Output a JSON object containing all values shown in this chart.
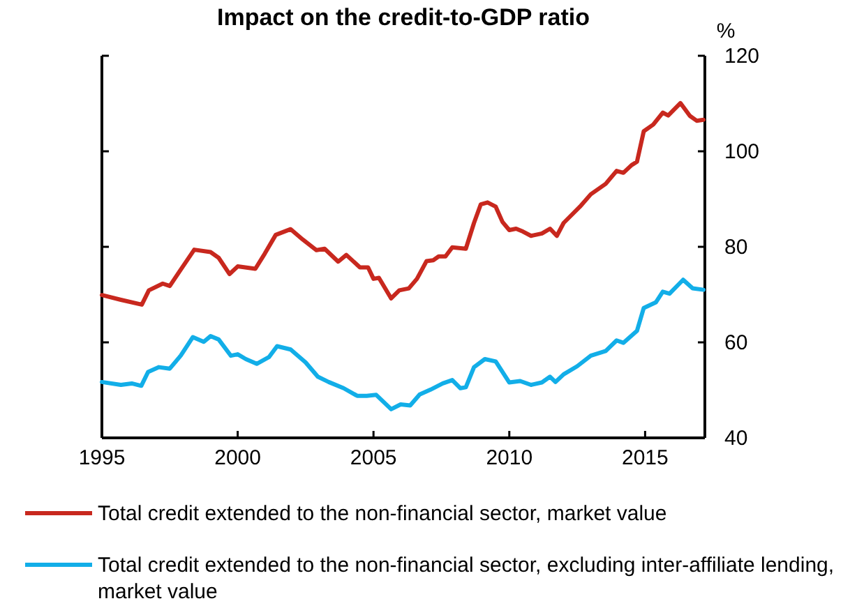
{
  "chart_data": {
    "type": "line",
    "title": "Impact on the credit-to-GDP ratio",
    "ylabel": "%",
    "xlim": [
      1995,
      2017.2
    ],
    "xticks": [
      1995,
      2000,
      2005,
      2010,
      2015
    ],
    "ylim": [
      40,
      120
    ],
    "yticks": [
      40,
      60,
      80,
      100,
      120
    ],
    "grid": false,
    "legend": "bottom",
    "marker": "none",
    "line_style": "solid",
    "series": [
      {
        "name": "Total credit extended to the non-financial sector, market value",
        "color": "#c8281e",
        "x": [
          1995.0,
          1995.7,
          1996.47,
          1996.73,
          1997.24,
          1997.5,
          1997.9,
          1998.4,
          1999.0,
          1999.3,
          1999.7,
          2000.0,
          2000.65,
          2001.0,
          2001.4,
          2001.95,
          2002.4,
          2002.9,
          2003.2,
          2003.7,
          2004.0,
          2004.5,
          2004.8,
          2005.0,
          2005.2,
          2005.65,
          2005.95,
          2006.3,
          2006.6,
          2006.95,
          2007.2,
          2007.4,
          2007.65,
          2007.9,
          2008.4,
          2008.7,
          2008.95,
          2009.2,
          2009.5,
          2009.75,
          2010.0,
          2010.25,
          2010.5,
          2010.8,
          2011.2,
          2011.5,
          2011.75,
          2012.0,
          2012.6,
          2013.0,
          2013.55,
          2013.95,
          2014.2,
          2014.5,
          2014.7,
          2014.95,
          2015.3,
          2015.65,
          2015.85,
          2016.3,
          2016.65,
          2016.9,
          2017.15
        ],
        "values": [
          69.9,
          68.9,
          67.9,
          70.9,
          72.3,
          71.8,
          75.2,
          79.4,
          78.9,
          77.7,
          74.3,
          75.9,
          75.4,
          78.6,
          82.5,
          83.7,
          81.5,
          79.3,
          79.6,
          76.9,
          78.3,
          75.7,
          75.7,
          73.3,
          73.5,
          69.2,
          70.9,
          71.3,
          73.3,
          77.0,
          77.2,
          78.0,
          78.0,
          79.9,
          79.6,
          85.0,
          88.9,
          89.3,
          88.4,
          85.2,
          83.5,
          83.8,
          83.2,
          82.3,
          82.8,
          83.8,
          82.3,
          85.0,
          88.4,
          91.0,
          93.2,
          95.9,
          95.5,
          97.1,
          97.8,
          104.2,
          105.6,
          108.1,
          107.5,
          110.1,
          107.4,
          106.4,
          106.6
        ]
      },
      {
        "name": "Total credit extended to the non-financial sector, excluding inter-affiliate lending, market value",
        "color": "#12aee8",
        "x": [
          1995.0,
          1995.7,
          1996.1,
          1996.45,
          1996.7,
          1997.1,
          1997.5,
          1997.9,
          1998.35,
          1998.75,
          1999.0,
          1999.3,
          1999.75,
          2000.0,
          2000.3,
          2000.7,
          2001.15,
          2001.45,
          2001.95,
          2002.5,
          2002.95,
          2003.35,
          2003.9,
          2004.4,
          2004.75,
          2005.1,
          2005.65,
          2006.0,
          2006.35,
          2006.7,
          2007.1,
          2007.55,
          2007.9,
          2008.2,
          2008.4,
          2008.7,
          2009.1,
          2009.5,
          2010.0,
          2010.4,
          2010.8,
          2011.2,
          2011.5,
          2011.7,
          2012.0,
          2012.5,
          2013.0,
          2013.55,
          2013.95,
          2014.2,
          2014.7,
          2014.95,
          2015.4,
          2015.65,
          2015.9,
          2016.4,
          2016.75,
          2017.15
        ],
        "values": [
          51.7,
          51.1,
          51.4,
          50.9,
          53.8,
          54.8,
          54.5,
          57.2,
          61.1,
          60.1,
          61.3,
          60.6,
          57.2,
          57.5,
          56.5,
          55.5,
          56.9,
          59.2,
          58.5,
          55.8,
          52.8,
          51.7,
          50.4,
          48.8,
          48.8,
          49.0,
          46.0,
          47.0,
          46.8,
          49.1,
          50.1,
          51.4,
          52.1,
          50.4,
          50.6,
          54.8,
          56.5,
          56.0,
          51.6,
          51.9,
          51.1,
          51.6,
          52.8,
          51.7,
          53.3,
          55.0,
          57.2,
          58.2,
          60.4,
          59.9,
          62.4,
          67.2,
          68.4,
          70.6,
          70.2,
          73.1,
          71.3,
          71.0
        ]
      }
    ]
  }
}
